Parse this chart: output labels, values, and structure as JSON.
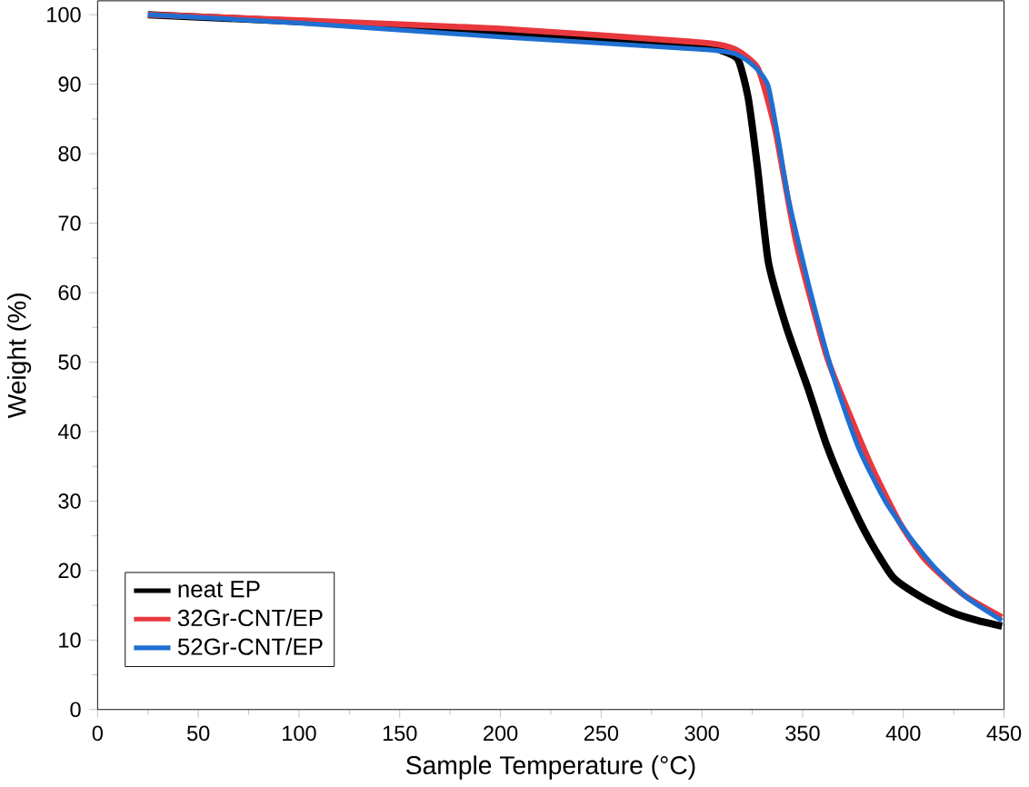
{
  "chart_data": {
    "type": "line",
    "xlabel": "Sample Temperature (°C)",
    "ylabel": "Weight (%)",
    "xlim": [
      0,
      450
    ],
    "ylim": [
      0,
      102
    ],
    "xticks": [
      0,
      50,
      100,
      150,
      200,
      250,
      300,
      350,
      400,
      450
    ],
    "yticks": [
      0,
      10,
      20,
      30,
      40,
      50,
      60,
      70,
      80,
      90,
      100
    ],
    "legend": "bottom left",
    "grid": false,
    "marker": "none",
    "line_style": "solid",
    "series": [
      {
        "name": "neat EP",
        "color": "#000000",
        "x": [
          25,
          100,
          200,
          300,
          310,
          318,
          323,
          327.6,
          333,
          342,
          352.7,
          362,
          372,
          383,
          395,
          410,
          424,
          437,
          449
        ],
        "values": [
          100,
          99,
          97.5,
          95.5,
          94.8,
          93.5,
          88,
          78,
          64.4,
          55,
          46.2,
          38,
          31,
          24.5,
          19,
          16,
          14,
          12.8,
          12
        ]
      },
      {
        "name": "32Gr-CNT/EP",
        "color": "#e8383d",
        "x": [
          25,
          100,
          200,
          300,
          315,
          322,
          327.6,
          332,
          337,
          347,
          362,
          374,
          385,
          398,
          410.5,
          430,
          449
        ],
        "values": [
          100,
          99.2,
          98,
          96,
          95.2,
          94,
          92.4,
          88.5,
          82.6,
          67,
          50.8,
          42,
          34.5,
          27,
          21.7,
          16.5,
          13.3
        ]
      },
      {
        "name": "52Gr-CNT/EP",
        "color": "#1f6fd1",
        "x": [
          25,
          100,
          200,
          300,
          315,
          322,
          328,
          333,
          338,
          343,
          354,
          366,
          378,
          391,
          404,
          417,
          432,
          449
        ],
        "values": [
          100,
          98.8,
          96.8,
          95,
          94.5,
          93.5,
          92,
          89.7,
          82,
          73.4,
          60,
          47.3,
          37.5,
          30,
          24.5,
          20,
          16,
          12.8
        ]
      }
    ]
  }
}
